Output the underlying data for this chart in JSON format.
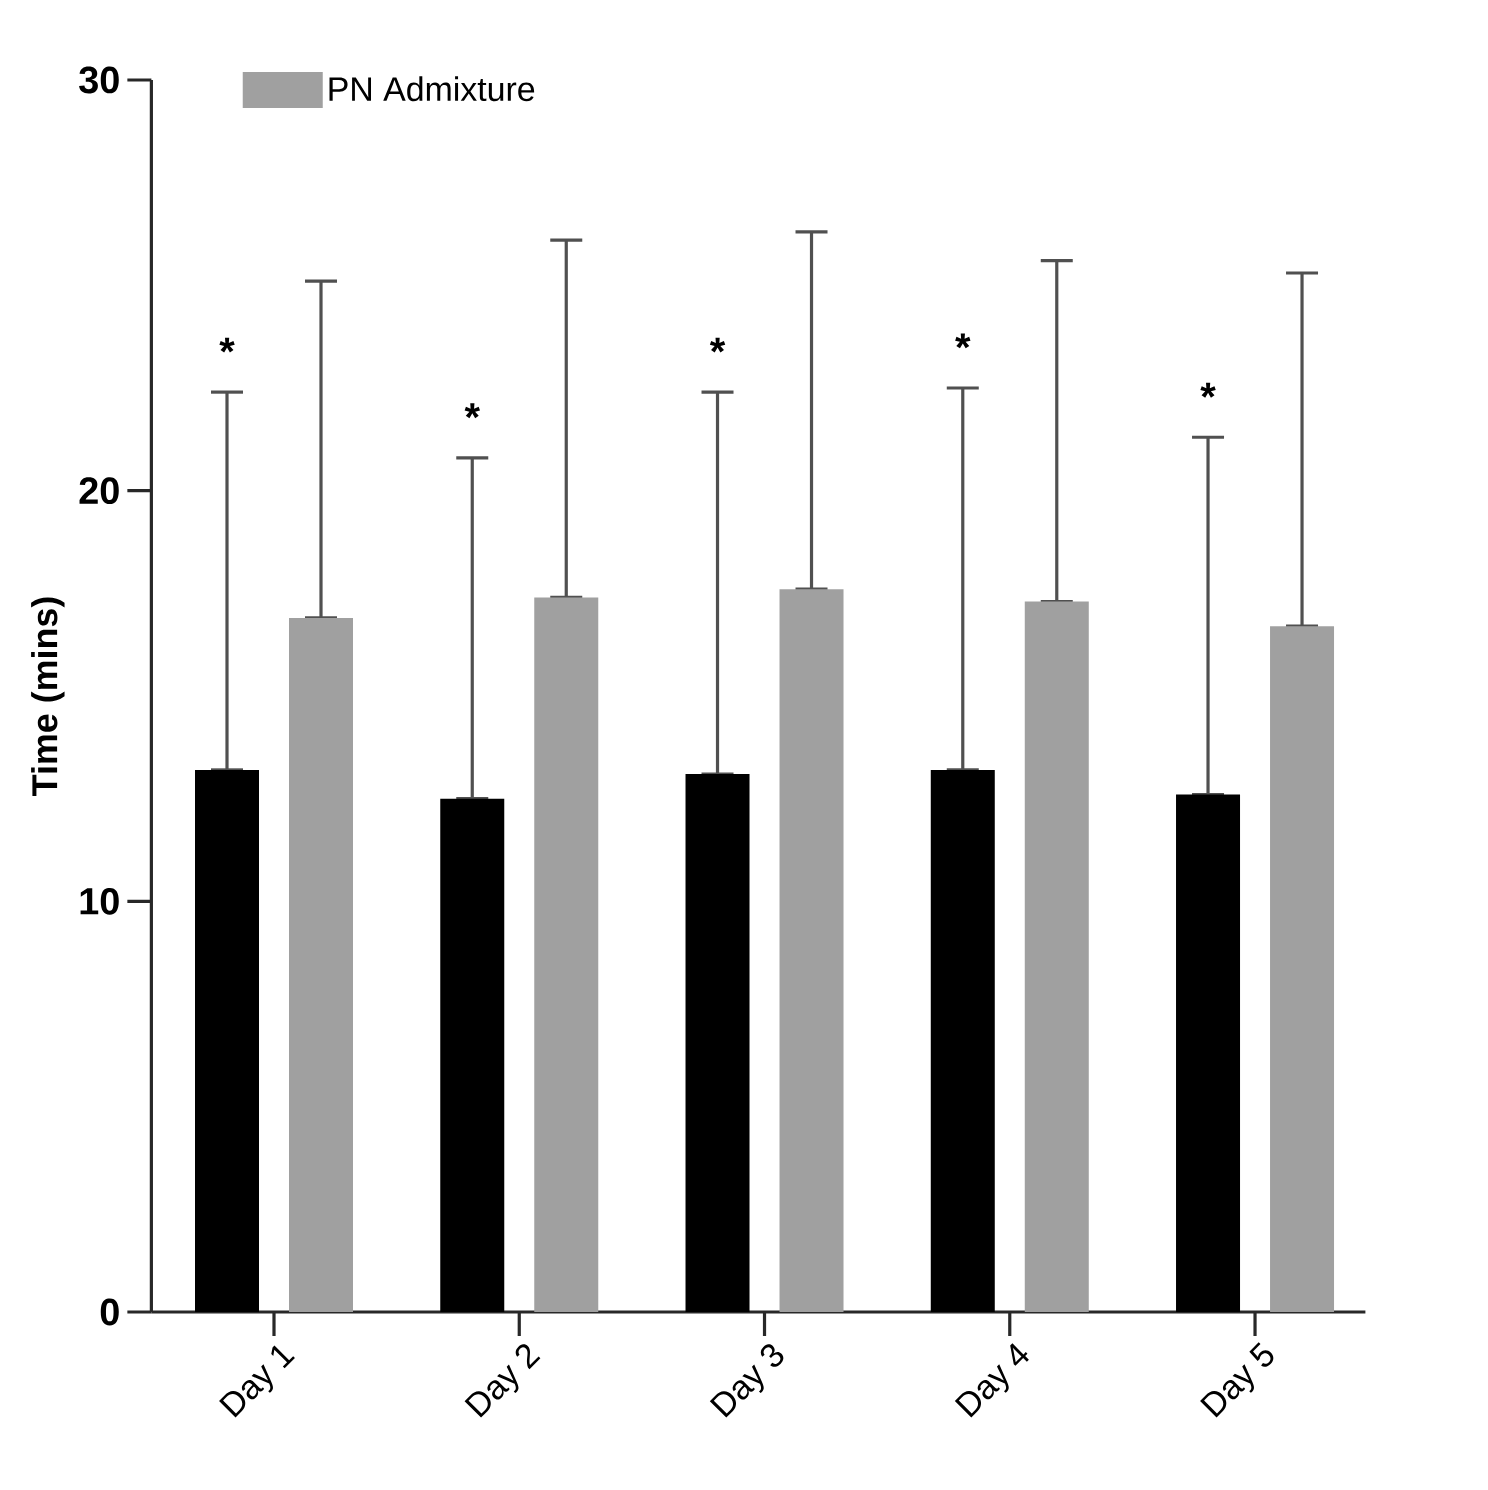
{
  "chart_data": {
    "type": "bar",
    "ylabel": "Time (mins)",
    "categories": [
      "Day 1",
      "Day 2",
      "Day 3",
      "Day 4",
      "Day 5"
    ],
    "series": [
      {
        "color": "#000000",
        "values": [
          13.2,
          12.5,
          13.1,
          13.2,
          12.6
        ],
        "errors": [
          [
            13.2,
            22.4
          ],
          [
            12.5,
            20.8
          ],
          [
            13.1,
            22.4
          ],
          [
            13.2,
            22.5
          ],
          [
            12.6,
            21.3
          ]
        ]
      },
      {
        "name": "PN Admixture",
        "color": "#a0a0a0",
        "values": [
          16.9,
          17.4,
          17.6,
          17.3,
          16.7
        ],
        "errors": [
          [
            16.9,
            25.1
          ],
          [
            17.4,
            26.1
          ],
          [
            17.6,
            26.3
          ],
          [
            17.3,
            25.6
          ],
          [
            16.7,
            25.3
          ]
        ]
      }
    ],
    "ylim": [
      0,
      30
    ],
    "yticks": [
      0,
      10,
      20,
      30
    ],
    "legend": "top left",
    "grid": false,
    "annotations": [
      "*",
      "*",
      "*",
      "*",
      "*"
    ]
  }
}
